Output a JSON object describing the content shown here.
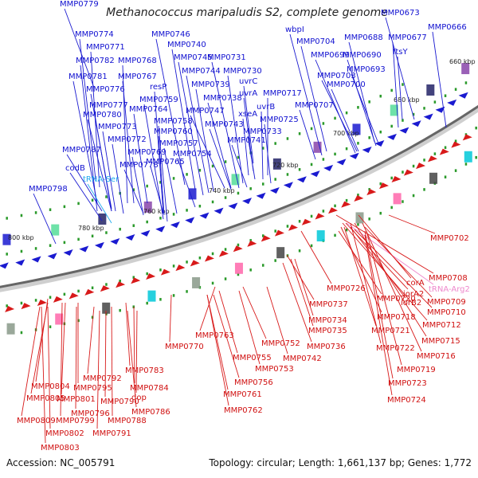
{
  "header": {
    "title": "Methanococcus maripaludis S2, complete genome"
  },
  "footer": {
    "accession": "Accession: NC_005791",
    "topology": "Topology: circular; Length: 1,661,137 bp; Genes: 1,772"
  },
  "colors": {
    "forward_strand": "#1a1ad0",
    "reverse_strand": "#d81a1a",
    "trna": "#22aaee",
    "trna_alt": "#ee88cc",
    "backbone": "#666666",
    "tick": "#2a9a2a"
  },
  "scale_ticks": [
    "660 kbp",
    "680 kbp",
    "700 kbp",
    "720 kbp",
    "740 kbp",
    "760 kbp",
    "780 kbp",
    "800 kbp"
  ],
  "genes_upper": [
    "MMP0779",
    "MMP0673",
    "MMP0666",
    "MMP0774",
    "MMP0746",
    "MMP0771",
    "MMP0740",
    "wbpI",
    "MMP0704",
    "MMP0688",
    "MMP0677",
    "MMP0782",
    "MMP0768",
    "MMP0745",
    "MMP0731",
    "MMP0699",
    "MMP0690",
    "ftsY",
    "MMP0781",
    "MMP0767",
    "resP",
    "MMP0744",
    "MMP0730",
    "MMP0693",
    "MMP0776",
    "uvrC",
    "MMP0703",
    "MMP0759",
    "MMP0739",
    "uvrA",
    "MMP0700",
    "MMP0777",
    "MMP0738",
    "MMP0717",
    "MMP0780",
    "MMP0764",
    "MMP0747",
    "uvrB",
    "MMP0707",
    "MMP0758",
    "MMP0773",
    "MMP0743",
    "MMP0725",
    "MMP0760",
    "xseA",
    "MMP0772",
    "MMP0757",
    "MMP0733",
    "MMP0741",
    "MMP0787",
    "MMP0769",
    "MMP0754",
    "codB",
    "MMP0778",
    "MMP0765",
    "tRNA-Ser",
    "MMP0798"
  ],
  "genes_lower": [
    "MMP0702",
    "MMP0708",
    "corA",
    "MMP0726",
    "tRNA-Arg2",
    "iorA2",
    "MMP0709",
    "MMP0720",
    "iorB2",
    "MMP0737",
    "MMP0710",
    "MMP0718",
    "MMP0734",
    "MMP0712",
    "MMP0735",
    "MMP0721",
    "MMP0715",
    "MMP0736",
    "MMP0722",
    "MMP0716",
    "MMP0763",
    "MMP0752",
    "MMP0770",
    "MMP0719",
    "MMP0742",
    "MMP0755",
    "MMP0753",
    "MMP0783",
    "MMP0723",
    "MMP0792",
    "MMP0756",
    "MMP0804",
    "MMP0784",
    "MMP0795",
    "MMP0805",
    "MMP0801",
    "dop",
    "MMP0724",
    "MMP0790",
    "MMP0761",
    "MMP0796",
    "MMP0786",
    "MMP0809",
    "MMP0799",
    "MMP0788",
    "MMP0762",
    "MMP0802",
    "MMP0791",
    "MMP0803"
  ]
}
